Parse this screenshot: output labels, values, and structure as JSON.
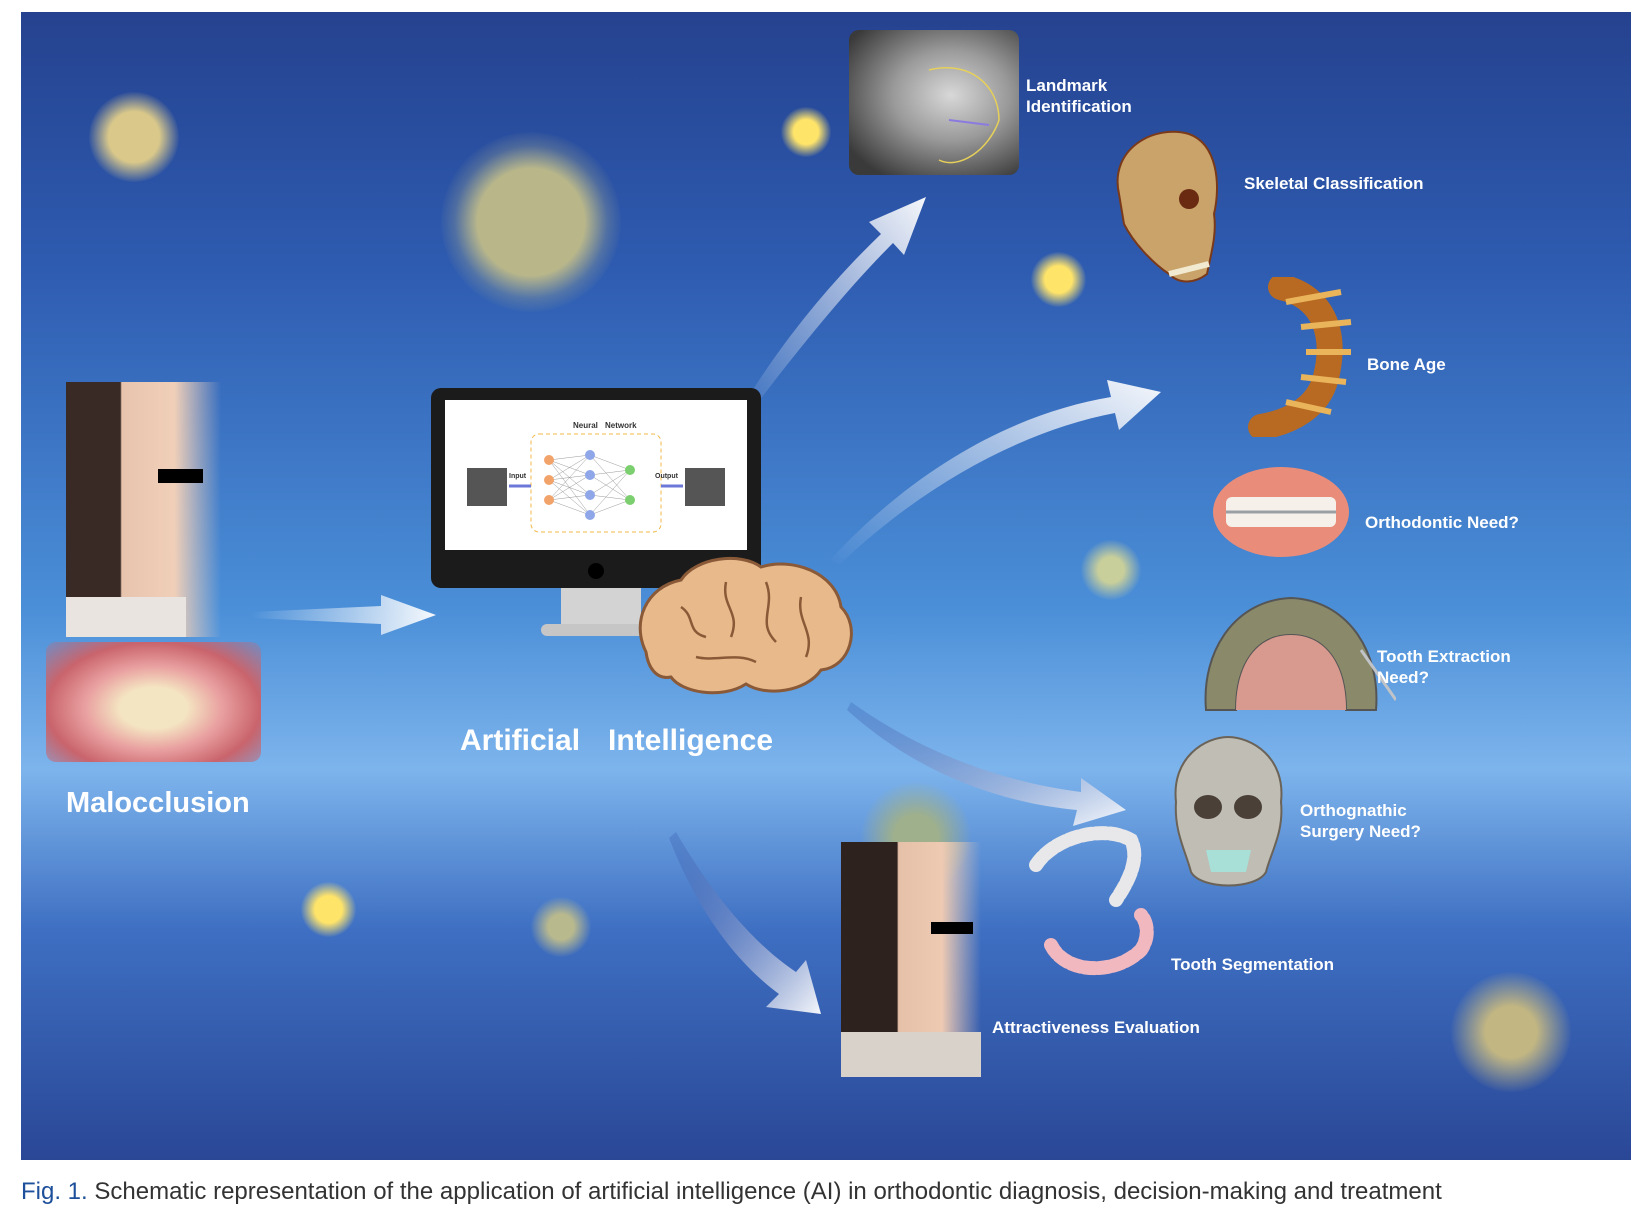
{
  "figure": {
    "caption_label": "Fig. 1.",
    "caption_text": "Schematic representation of the application of artificial intelligence (AI) in orthodontic diagnosis, decision-making and treatment"
  },
  "input": {
    "label": "Malocclusion"
  },
  "center": {
    "word1": "Artificial",
    "word2": "Intelligence",
    "screen": {
      "title_left": "Neural",
      "title_right": "Network",
      "input_label": "Input",
      "output_label": "Output"
    }
  },
  "outputs": {
    "landmark": "Landmark\nIdentification",
    "skeletal": "Skeletal Classification",
    "bone_age": "Bone Age",
    "ortho_need": "Orthodontic Need?",
    "extraction": "Tooth Extraction\nNeed?",
    "surgery": "Orthognathic\nSurgery Need?",
    "segmentation": "Tooth Segmentation",
    "attractiveness": "Attractiveness Evaluation"
  },
  "colors": {
    "panel_top": "#25428f",
    "panel_mid": "#7db4ec",
    "arrow": "#ffffff",
    "caption_label": "#1d4f9a"
  }
}
